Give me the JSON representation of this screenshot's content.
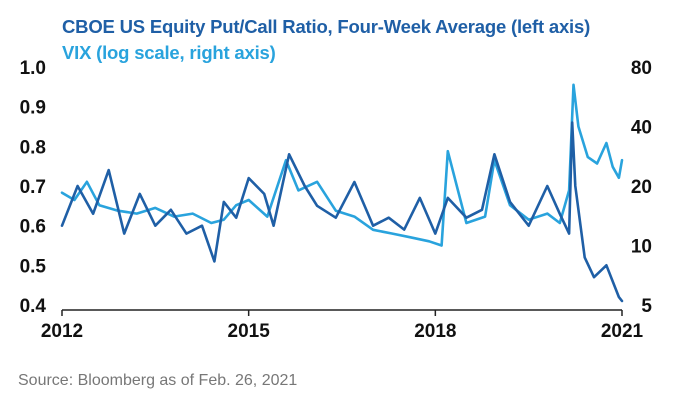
{
  "titles": {
    "line1": "CBOE US Equity Put/Call Ratio, Four-Week Average (left axis)",
    "line2": "VIX (log scale, right axis)"
  },
  "source": "Source: Bloomberg as of Feb. 26, 2021",
  "colors": {
    "putcall": "#1f5fa6",
    "vix": "#29a3dd",
    "title1": "#1f5fa6",
    "title2": "#29a3dd"
  },
  "chart_data": {
    "type": "line",
    "title": "CBOE US Equity Put/Call Ratio, Four-Week Average (left axis); VIX (log scale, right axis)",
    "xlabel": "",
    "ylabel": "",
    "x_ticks": [
      "2012",
      "2015",
      "2018",
      "2021"
    ],
    "x_tick_values": [
      2012,
      2015,
      2018,
      2021
    ],
    "xlim": [
      2012,
      2021
    ],
    "left_axis": {
      "ylim": [
        0.4,
        1.0
      ],
      "ticks": [
        "1.0",
        "0.9",
        "0.8",
        "0.7",
        "0.6",
        "0.5",
        "0.4"
      ],
      "tick_values": [
        1.0,
        0.9,
        0.8,
        0.7,
        0.6,
        0.5,
        0.4
      ]
    },
    "right_axis": {
      "scale": "log",
      "ylim": [
        5,
        80
      ],
      "ticks": [
        "80",
        "40",
        "20",
        "10",
        "5"
      ],
      "tick_values": [
        80,
        40,
        20,
        10,
        5
      ]
    },
    "series": [
      {
        "name": "CBOE US Equity Put/Call Ratio, Four-Week Average",
        "axis": "left",
        "x": [
          2012.0,
          2012.25,
          2012.5,
          2012.75,
          2013.0,
          2013.25,
          2013.5,
          2013.75,
          2014.0,
          2014.25,
          2014.45,
          2014.6,
          2014.8,
          2015.0,
          2015.25,
          2015.4,
          2015.65,
          2015.9,
          2016.1,
          2016.4,
          2016.7,
          2017.0,
          2017.25,
          2017.5,
          2017.75,
          2018.0,
          2018.2,
          2018.5,
          2018.75,
          2018.95,
          2019.2,
          2019.5,
          2019.8,
          2020.0,
          2020.15,
          2020.2,
          2020.25,
          2020.4,
          2020.55,
          2020.75,
          2020.95,
          2021.0
        ],
        "values": [
          0.6,
          0.7,
          0.63,
          0.74,
          0.58,
          0.68,
          0.6,
          0.64,
          0.58,
          0.6,
          0.51,
          0.66,
          0.62,
          0.72,
          0.68,
          0.6,
          0.78,
          0.7,
          0.65,
          0.62,
          0.71,
          0.6,
          0.62,
          0.59,
          0.67,
          0.58,
          0.67,
          0.62,
          0.64,
          0.78,
          0.66,
          0.6,
          0.7,
          0.63,
          0.58,
          0.86,
          0.7,
          0.52,
          0.47,
          0.5,
          0.42,
          0.41
        ]
      },
      {
        "name": "VIX",
        "axis": "right",
        "x": [
          2012.0,
          2012.2,
          2012.4,
          2012.6,
          2012.9,
          2013.2,
          2013.5,
          2013.8,
          2014.1,
          2014.4,
          2014.6,
          2014.8,
          2015.0,
          2015.3,
          2015.6,
          2015.8,
          2016.1,
          2016.4,
          2016.7,
          2017.0,
          2017.3,
          2017.6,
          2017.9,
          2018.1,
          2018.2,
          2018.5,
          2018.8,
          2018.95,
          2019.2,
          2019.5,
          2019.8,
          2020.0,
          2020.15,
          2020.22,
          2020.3,
          2020.45,
          2020.6,
          2020.75,
          2020.85,
          2020.95,
          2021.0
        ],
        "values": [
          18.5,
          17,
          21,
          16,
          15,
          14.5,
          15.5,
          14,
          14.5,
          13,
          13.5,
          16,
          17,
          14,
          27,
          19,
          21,
          15,
          14,
          12,
          11.5,
          11,
          10.5,
          10,
          30,
          13,
          14,
          27,
          16,
          13.5,
          14.5,
          13,
          19,
          65,
          40,
          28,
          26,
          33,
          25,
          22,
          27
        ]
      }
    ]
  }
}
